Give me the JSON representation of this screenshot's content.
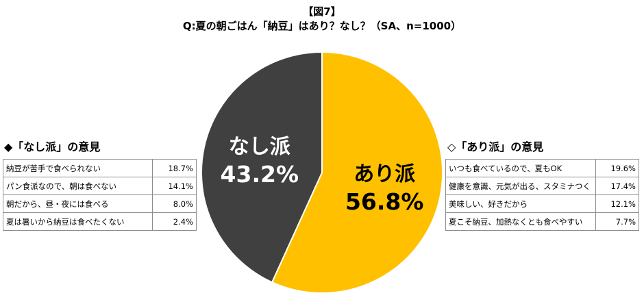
{
  "figure_label": "【図7】",
  "chart_data": {
    "type": "pie",
    "title": "Q:夏の朝ごはん「納豆」はあり？なし？（SA、n=1000）",
    "slices": [
      {
        "label": "あり派",
        "value": 56.8,
        "value_label": "56.8%",
        "color": "#FFC000"
      },
      {
        "label": "なし派",
        "value": 43.2,
        "value_label": "43.2%",
        "color": "#404040"
      }
    ]
  },
  "left_table": {
    "heading": "◆「なし派」の意見",
    "rows": [
      {
        "reason": "納豆が苦手で食べられない",
        "value": "18.7%"
      },
      {
        "reason": "パン食派なので、朝は食べない",
        "value": "14.1%"
      },
      {
        "reason": "朝だから、昼・夜には食べる",
        "value": "8.0%"
      },
      {
        "reason": "夏は暑いから納豆は食べたくない",
        "value": "2.4%"
      }
    ]
  },
  "right_table": {
    "heading": "◇「あり派」の意見",
    "rows": [
      {
        "reason": "いつも食べているので、夏もOK",
        "value": "19.6%"
      },
      {
        "reason": "健康を意識、元気が出る、スタミナつく",
        "value": "17.4%"
      },
      {
        "reason": "美味しい、好きだから",
        "value": "12.1%"
      },
      {
        "reason": "夏こそ納豆、加熱なくとも食べやすい",
        "value": "7.7%"
      }
    ]
  }
}
